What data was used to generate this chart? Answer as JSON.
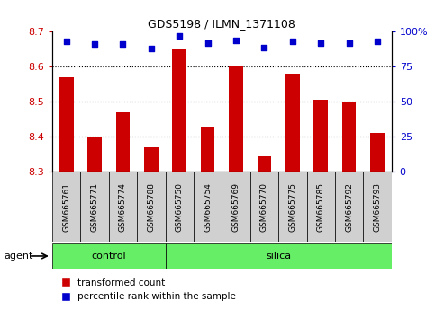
{
  "title": "GDS5198 / ILMN_1371108",
  "samples": [
    "GSM665761",
    "GSM665771",
    "GSM665774",
    "GSM665788",
    "GSM665750",
    "GSM665754",
    "GSM665769",
    "GSM665770",
    "GSM665775",
    "GSM665785",
    "GSM665792",
    "GSM665793"
  ],
  "transformed_count": [
    8.57,
    8.4,
    8.47,
    8.37,
    8.65,
    8.43,
    8.6,
    8.345,
    8.58,
    8.505,
    8.5,
    8.41
  ],
  "percentile_rank": [
    93,
    91,
    91,
    88,
    97,
    92,
    94,
    89,
    93,
    92,
    92,
    93
  ],
  "ylim_left": [
    8.3,
    8.7
  ],
  "ylim_right": [
    0,
    100
  ],
  "yticks_left": [
    8.3,
    8.4,
    8.5,
    8.6,
    8.7
  ],
  "yticks_right": [
    0,
    25,
    50,
    75,
    100
  ],
  "bar_color": "#cc0000",
  "dot_color": "#0000cc",
  "bar_bottom": 8.3,
  "control_samples": [
    "GSM665761",
    "GSM665771",
    "GSM665774",
    "GSM665788"
  ],
  "silica_samples": [
    "GSM665750",
    "GSM665754",
    "GSM665769",
    "GSM665770",
    "GSM665775",
    "GSM665785",
    "GSM665792",
    "GSM665793"
  ],
  "control_label": "control",
  "silica_label": "silica",
  "agent_label": "agent",
  "legend_bar_label": "transformed count",
  "legend_dot_label": "percentile rank within the sample",
  "tick_bg_color": "#d0d0d0",
  "green_color": "#66ee66",
  "title_color": "#000000",
  "left_axis_color": "#cc0000",
  "right_axis_color": "#0000cc",
  "grid_yticks": [
    8.4,
    8.5,
    8.6
  ]
}
